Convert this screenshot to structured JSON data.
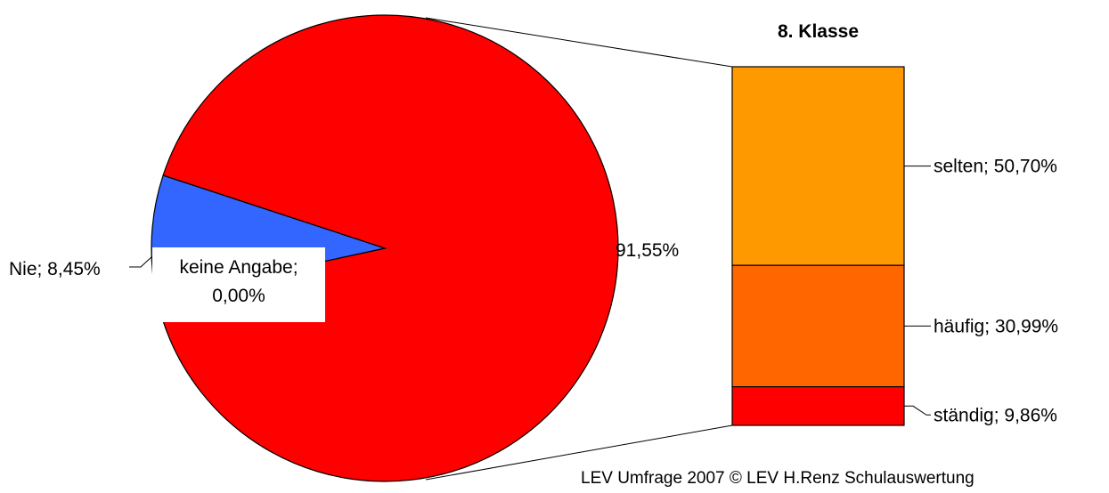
{
  "chart_data": {
    "type": "pie-of-bar",
    "pie": {
      "slices": [
        {
          "label": "keine Angabe",
          "value": 0.0,
          "display": "keine Angabe;\n0,00%",
          "color": "#ffffff"
        },
        {
          "label": "Nie",
          "value": 8.45,
          "display": "Nie; 8,45%",
          "color": "#3366ff"
        },
        {
          "label": "",
          "value": 91.55,
          "display": "91,55%",
          "color": "#ff0000"
        }
      ]
    },
    "bar": {
      "title": "8. Klasse",
      "segments": [
        {
          "label": "selten",
          "value": 50.7,
          "display": "selten; 50,70%",
          "color": "#ff9900"
        },
        {
          "label": "häufig",
          "value": 30.99,
          "display": "häufig; 30,99%",
          "color": "#ff6600"
        },
        {
          "label": "ständig",
          "value": 9.86,
          "display": "ständig; 9,86%",
          "color": "#ff0000"
        }
      ]
    }
  },
  "footer": "LEV Umfrage 2007  © LEV   H.Renz  Schulauswertung"
}
